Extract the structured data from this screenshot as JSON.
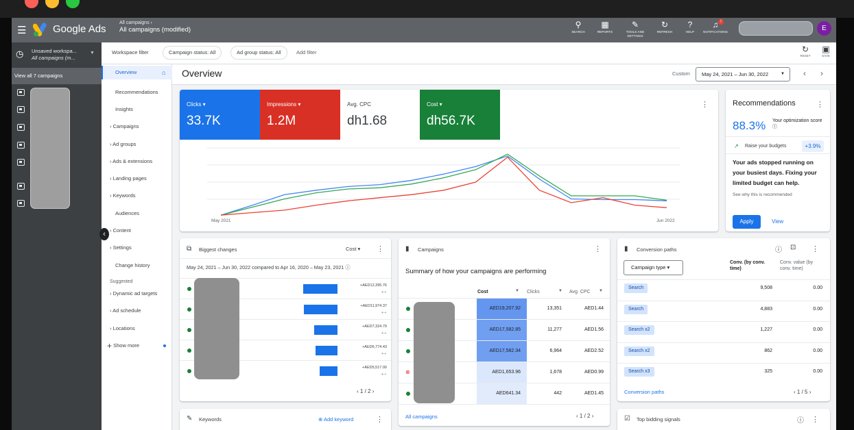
{
  "header": {
    "brand": "Google Ads",
    "breadcrumb_top": "All campaigns",
    "breadcrumb_main": "All campaigns (modified)",
    "tools": [
      {
        "label": "SEARCH",
        "icon": "search-icon"
      },
      {
        "label": "REPORTS",
        "icon": "reports-icon"
      },
      {
        "label": "TOOLS AND SETTINGS",
        "icon": "wrench-icon"
      },
      {
        "label": "REFRESH",
        "icon": "refresh-icon"
      },
      {
        "label": "HELP",
        "icon": "help-icon"
      },
      {
        "label": "NOTIFICATIONS",
        "icon": "bell-icon"
      }
    ],
    "notification_count": "!",
    "avatar_initial": "E"
  },
  "workspace": {
    "title": "Unsaved workspa...",
    "subtitle": "All campaigns (m...",
    "view_all": "View all 7 campaigns"
  },
  "filterbar": {
    "label": "Workspace filter",
    "chips": [
      "Campaign status: All",
      "Ad group status: All"
    ],
    "add_filter": "Add filter",
    "reset": "RESET",
    "save": "SAVE"
  },
  "nav": {
    "items": [
      "Overview",
      "Recommendations",
      "Insights",
      "Campaigns",
      "Ad groups",
      "Ads & extensions",
      "Landing pages",
      "Keywords",
      "Audiences",
      "Content",
      "Settings",
      "Change history"
    ],
    "suggested_label": "Suggested",
    "suggested": [
      "Dynamic ad targets",
      "Ad schedule",
      "Locations"
    ],
    "show_more": "Show more"
  },
  "content": {
    "title": "Overview",
    "custom_label": "Custom",
    "date_range": "May 24, 2021 – Jun 30, 2022"
  },
  "overview": {
    "metrics": [
      {
        "label": "Clicks",
        "value": "33.7K",
        "color": "#1a73e8"
      },
      {
        "label": "Impressions",
        "value": "1.2M",
        "color": "#d93025"
      },
      {
        "label": "Avg. CPC",
        "value": "dh1.68",
        "color": "#ffffff"
      },
      {
        "label": "Cost",
        "value": "dh56.7K",
        "color": "#188038"
      }
    ],
    "x_start": "May 2021",
    "x_end": "Jun 2022"
  },
  "chart_data": {
    "type": "line",
    "x_labels": [
      "May 2021",
      "Jun 2022"
    ],
    "series": [
      {
        "color": "#4285f4",
        "values": [
          2,
          18,
          35,
          42,
          48,
          51,
          58,
          68,
          80,
          97,
          60,
          28,
          27,
          27,
          25
        ]
      },
      {
        "color": "#34a853",
        "values": [
          2,
          15,
          28,
          38,
          44,
          46,
          52,
          62,
          75,
          100,
          65,
          33,
          33,
          33,
          26
        ]
      },
      {
        "color": "#ea4335",
        "values": [
          2,
          6,
          10,
          18,
          25,
          30,
          35,
          42,
          55,
          95,
          42,
          22,
          30,
          18,
          14
        ]
      }
    ],
    "ylim": [
      0,
      110
    ],
    "grid": true
  },
  "recommendations": {
    "title": "Recommendations",
    "score": "88.3%",
    "score_label": "Your optimization score",
    "item": "Raise your budgets",
    "item_badge": "+3.9%",
    "text": "Your ads stopped running on your busiest days. Fixing your limited budget can help.",
    "why": "See why this is recommended",
    "apply": "Apply",
    "view": "View"
  },
  "biggest_changes": {
    "title": "Biggest changes",
    "metric": "Cost",
    "compare": "May 24, 2021 – Jun 30, 2022 compared to Apr 16, 2020 – May 23, 2021",
    "rows": [
      {
        "value": "+AED12,395.76",
        "bar": 1.0
      },
      {
        "value": "+AED11,974.37",
        "bar": 0.98
      },
      {
        "value": "+AED7,324.79",
        "bar": 0.68
      },
      {
        "value": "+AED6,774.43",
        "bar": 0.64
      },
      {
        "value": "+AED5,517.00",
        "bar": 0.52
      }
    ],
    "pager": "1 / 2"
  },
  "campaigns": {
    "title": "Campaigns",
    "summary": "Summary of how your campaigns are performing",
    "headers": [
      "Cost",
      "Clicks",
      "Avg. CPC"
    ],
    "rows": [
      {
        "status": "green",
        "cost": "AED19,207.92",
        "clicks": "13,351",
        "cpc": "AED1.44",
        "shade": 1.0
      },
      {
        "status": "green",
        "cost": "AED17,582.85",
        "clicks": "11,277",
        "cpc": "AED1.56",
        "shade": 0.9
      },
      {
        "status": "green",
        "cost": "AED17,582.34",
        "clicks": "6,964",
        "cpc": "AED2.52",
        "shade": 0.9
      },
      {
        "status": "red",
        "cost": "AED1,653.96",
        "clicks": "1,678",
        "cpc": "AED0.99",
        "shade": 0.1
      },
      {
        "status": "green",
        "cost": "AED641.34",
        "clicks": "442",
        "cpc": "AED1.45",
        "shade": 0.05
      }
    ],
    "all_link": "All campaigns",
    "pager": "1 / 2"
  },
  "conversion_paths": {
    "title": "Conversion paths",
    "selector": "Campaign type",
    "col1": "Conv. (by conv. time)",
    "col2": "Conv. value (by conv. time)",
    "rows": [
      {
        "path": "Search",
        "conv": "9,508",
        "value": "0.00"
      },
      {
        "path": "Search",
        "conv": "4,883",
        "value": "0.00"
      },
      {
        "path": "Search  x2",
        "conv": "1,227",
        "value": "0.00"
      },
      {
        "path": "Search  x2",
        "conv": "862",
        "value": "0.00"
      },
      {
        "path": "Search  x3",
        "conv": "325",
        "value": "0.00"
      }
    ],
    "link": "Conversion paths",
    "pager": "1 / 5"
  },
  "keywords": {
    "title": "Keywords",
    "add": "Add keyword"
  },
  "bidding": {
    "title": "Top bidding signals"
  }
}
